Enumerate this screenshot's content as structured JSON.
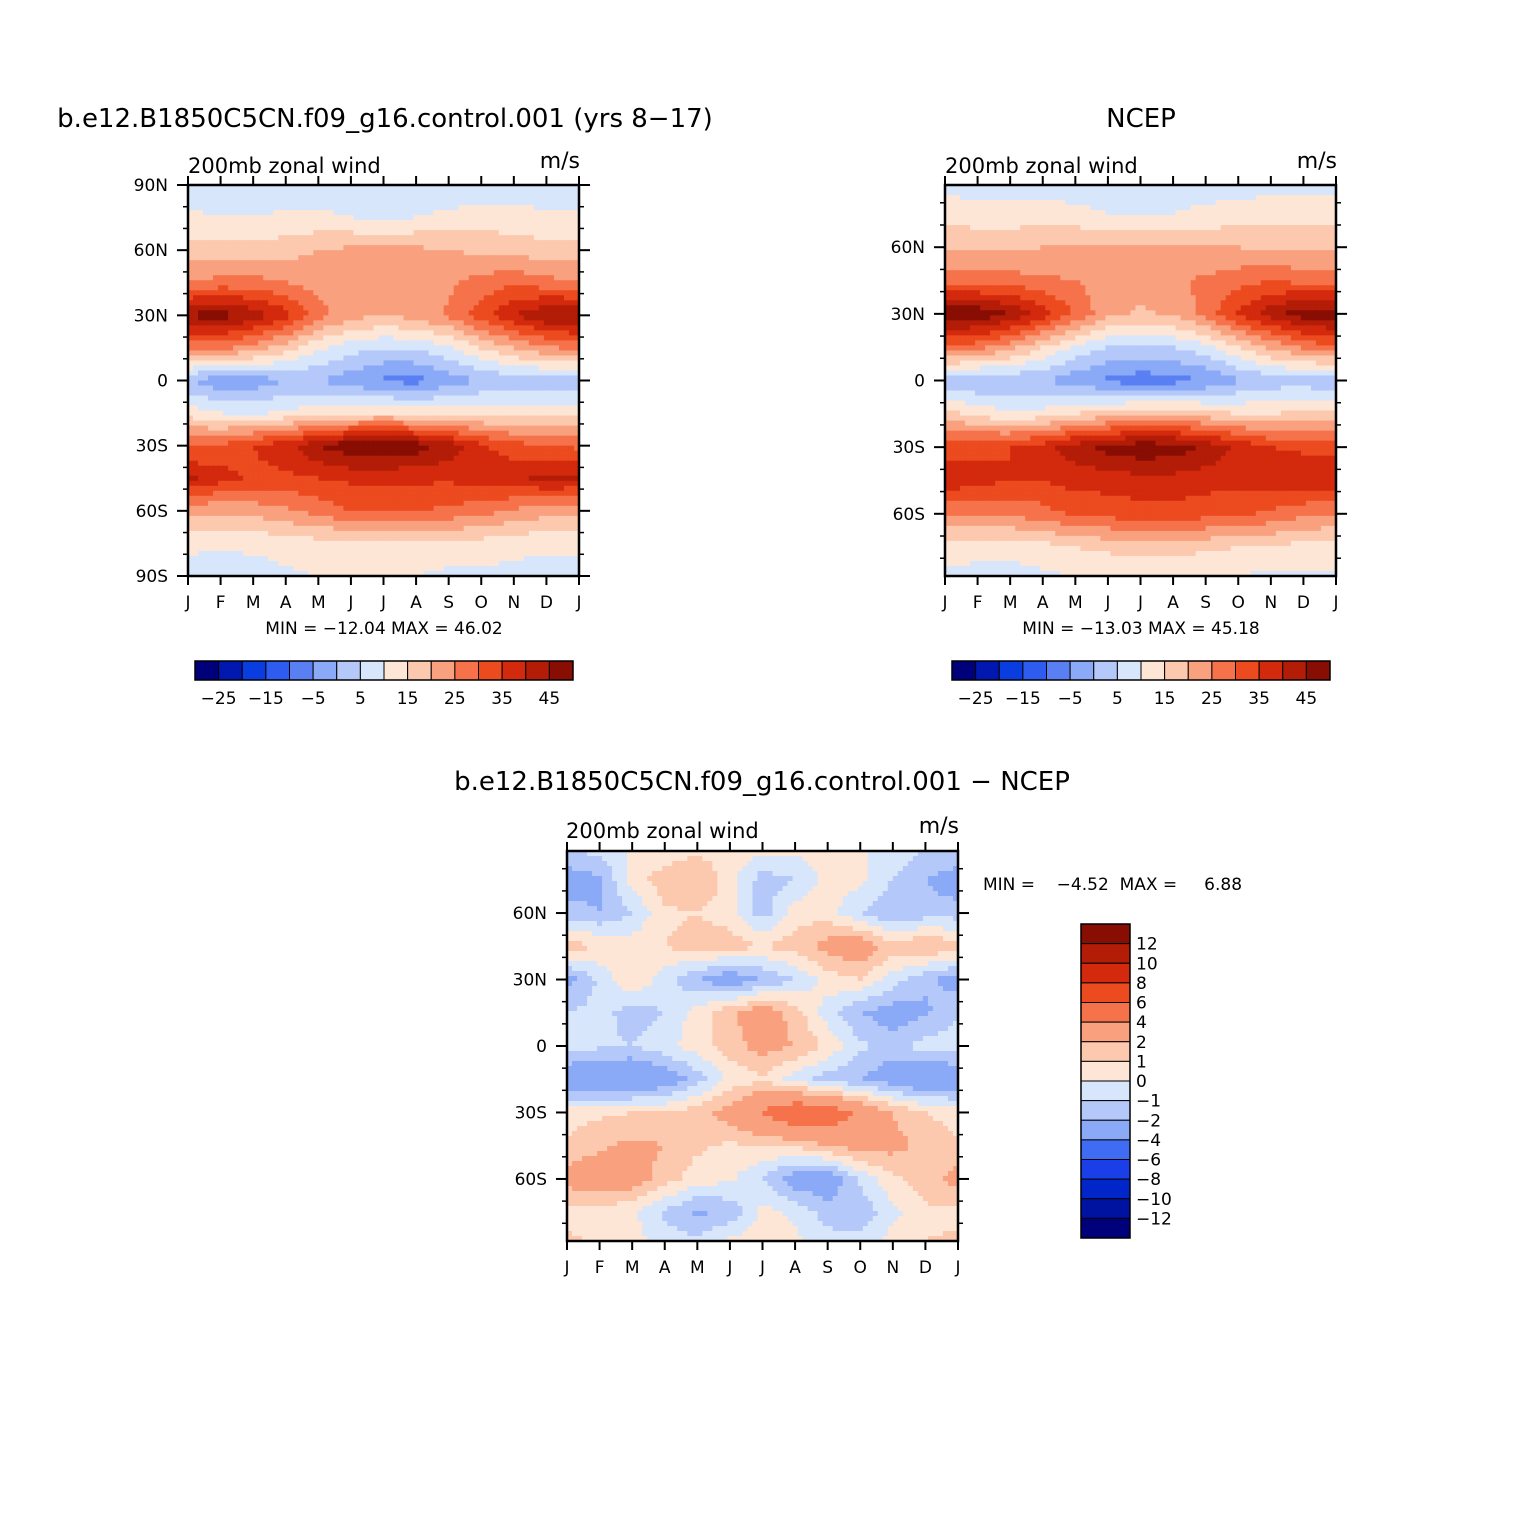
{
  "colors": {
    "absolute_palette": [
      "#00007a",
      "#0018b0",
      "#0a3de0",
      "#2e5cf0",
      "#5a7ff3",
      "#8aaaf7",
      "#b4c8f9",
      "#d8e6fb",
      "#fde6d6",
      "#fcc8ae",
      "#f9a17e",
      "#f5724a",
      "#ec4b1f",
      "#d3290c",
      "#b31c07",
      "#880d02"
    ],
    "diff_palette": [
      "#00007a",
      "#0012a0",
      "#0025c8",
      "#1a3fe8",
      "#3f6cf3",
      "#8aaaf7",
      "#b4c8f9",
      "#d8e6fb",
      "#fde6d6",
      "#fcc8ae",
      "#f9a17e",
      "#f5724a",
      "#ec4b1f",
      "#d3290c",
      "#b31c07",
      "#880d02"
    ]
  },
  "panels": [
    {
      "id": "model",
      "title": "b.e12.B1850C5CN.f09_g16.control.001 (yrs 8−17)",
      "left_string": "200mb  zonal  wind",
      "right_string": "m/s",
      "min_max": "MIN = −12.04 MAX =   46.02"
    },
    {
      "id": "obs",
      "title": "NCEP",
      "left_string": "200mb  zonal  wind",
      "right_string": "m/s",
      "min_max": "MIN = −13.03 MAX =   45.18"
    },
    {
      "id": "diff",
      "title": "b.e12.B1850C5CN.f09_g16.control.001  −  NCEP",
      "left_string": "200mb  zonal  wind",
      "right_string": "m/s",
      "min_max": "MIN =    −4.52  MAX =     6.88"
    }
  ],
  "horizontal_colorbar_labels": [
    "−25",
    "−15",
    "−5",
    "5",
    "15",
    "25",
    "35",
    "45"
  ],
  "vertical_colorbar_labels": [
    "12",
    "10",
    "8",
    "6",
    "4",
    "2",
    "1",
    "0",
    "−1",
    "−2",
    "−4",
    "−6",
    "−8",
    "−10",
    "−12"
  ],
  "chart_data": [
    {
      "type": "heatmap",
      "title": "b.e12.B1850C5CN.f09_g16.control.001 (yrs 8−17)",
      "subtitle_left": "200mb  zonal  wind",
      "subtitle_right": "m/s",
      "x_ticks": [
        "J",
        "F",
        "M",
        "A",
        "M",
        "J",
        "J",
        "A",
        "S",
        "O",
        "N",
        "D",
        "J"
      ],
      "y_ticks": [
        "90N",
        "60N",
        "30N",
        "0",
        "30S",
        "60S",
        "90S"
      ],
      "y_tick_values": [
        90,
        60,
        30,
        0,
        -30,
        -60,
        -90
      ],
      "xlim": [
        0,
        12
      ],
      "ylim": [
        -90,
        90
      ],
      "contour_levels": [
        -30,
        -25,
        -20,
        -15,
        -10,
        -5,
        0,
        5,
        10,
        15,
        20,
        25,
        30,
        35,
        40,
        45
      ],
      "min": -12.04,
      "max": 46.02,
      "lat": [
        -90,
        -75,
        -60,
        -45,
        -30,
        -15,
        0,
        15,
        30,
        45,
        60,
        75,
        90
      ],
      "month": [
        0,
        1,
        2,
        3,
        4,
        5,
        6,
        7,
        8,
        9,
        10,
        11,
        12
      ],
      "values": [
        [
          3,
          2,
          3,
          4,
          5,
          5,
          6,
          5,
          4,
          4,
          3,
          3,
          3
        ],
        [
          6,
          6,
          6,
          7,
          8,
          8,
          9,
          8,
          8,
          8,
          7,
          6,
          6
        ],
        [
          16,
          16,
          17,
          19,
          22,
          25,
          26,
          25,
          24,
          22,
          19,
          17,
          16
        ],
        [
          36,
          32,
          29,
          29,
          30,
          31,
          31,
          31,
          31,
          32,
          34,
          36,
          36
        ],
        [
          24,
          26,
          30,
          33,
          40,
          44,
          45,
          43,
          38,
          31,
          27,
          25,
          24
        ],
        [
          8,
          5,
          4,
          6,
          8,
          9,
          10,
          9,
          8,
          8,
          8,
          8,
          8
        ],
        [
          -5,
          -9,
          -8,
          -5,
          -5,
          -8,
          -11,
          -12,
          -8,
          -5,
          -3,
          -3,
          -5
        ],
        [
          22,
          21,
          18,
          12,
          6,
          2,
          0,
          1,
          4,
          10,
          15,
          19,
          22
        ],
        [
          41,
          43,
          38,
          32,
          22,
          17,
          15,
          17,
          21,
          28,
          35,
          40,
          41
        ],
        [
          20,
          22,
          22,
          20,
          18,
          16,
          16,
          17,
          19,
          22,
          24,
          22,
          20
        ],
        [
          12,
          12,
          12,
          13,
          15,
          16,
          16,
          16,
          15,
          14,
          13,
          12,
          12
        ],
        [
          6,
          5,
          5,
          6,
          6,
          5,
          4,
          5,
          6,
          7,
          7,
          6,
          6
        ],
        [
          2,
          2,
          2,
          2,
          2,
          2,
          2,
          2,
          2,
          2,
          2,
          2,
          2
        ]
      ]
    },
    {
      "type": "heatmap",
      "title": "NCEP",
      "subtitle_left": "200mb  zonal  wind",
      "subtitle_right": "m/s",
      "x_ticks": [
        "J",
        "F",
        "M",
        "A",
        "M",
        "J",
        "J",
        "A",
        "S",
        "O",
        "N",
        "D",
        "J"
      ],
      "y_ticks": [
        "60N",
        "30N",
        "0",
        "30S",
        "60S"
      ],
      "y_tick_values": [
        60,
        30,
        0,
        -30,
        -60
      ],
      "xlim": [
        0,
        12
      ],
      "ylim": [
        -88,
        88
      ],
      "contour_levels": [
        -30,
        -25,
        -20,
        -15,
        -10,
        -5,
        0,
        5,
        10,
        15,
        20,
        25,
        30,
        35,
        40,
        45
      ],
      "min": -13.03,
      "max": 45.18,
      "lat": [
        -88,
        -75,
        -60,
        -45,
        -30,
        -15,
        0,
        15,
        30,
        45,
        60,
        75,
        88
      ],
      "month": [
        0,
        1,
        2,
        3,
        4,
        5,
        6,
        7,
        8,
        9,
        10,
        11,
        12
      ],
      "values": [
        [
          4,
          3,
          3,
          4,
          5,
          6,
          6,
          6,
          5,
          5,
          4,
          4,
          4
        ],
        [
          8,
          7,
          7,
          8,
          10,
          11,
          12,
          12,
          11,
          10,
          9,
          8,
          8
        ],
        [
          20,
          20,
          21,
          23,
          26,
          27,
          28,
          28,
          27,
          26,
          24,
          21,
          20
        ],
        [
          34,
          32,
          30,
          30,
          32,
          32,
          33,
          33,
          32,
          32,
          33,
          34,
          34
        ],
        [
          28,
          29,
          30,
          33,
          38,
          42,
          44,
          43,
          39,
          34,
          30,
          29,
          28
        ],
        [
          12,
          8,
          6,
          7,
          10,
          12,
          14,
          14,
          12,
          10,
          10,
          11,
          12
        ],
        [
          -4,
          -5,
          -4,
          -5,
          -8,
          -11,
          -13,
          -12,
          -10,
          -6,
          -3,
          -3,
          -4
        ],
        [
          24,
          22,
          17,
          10,
          4,
          0,
          -1,
          0,
          3,
          10,
          16,
          21,
          24
        ],
        [
          44,
          44,
          40,
          33,
          24,
          17,
          14,
          16,
          22,
          31,
          38,
          43,
          44
        ],
        [
          22,
          22,
          22,
          21,
          20,
          18,
          18,
          19,
          21,
          23,
          25,
          23,
          22
        ],
        [
          14,
          14,
          14,
          15,
          16,
          16,
          16,
          16,
          15,
          15,
          14,
          14,
          14
        ],
        [
          8,
          7,
          7,
          7,
          6,
          5,
          5,
          5,
          6,
          7,
          8,
          8,
          8
        ],
        [
          3,
          3,
          3,
          3,
          3,
          3,
          3,
          3,
          3,
          3,
          3,
          3,
          3
        ]
      ]
    },
    {
      "type": "heatmap",
      "title": "b.e12.B1850C5CN.f09_g16.control.001  −  NCEP",
      "subtitle_left": "200mb  zonal  wind",
      "subtitle_right": "m/s",
      "x_ticks": [
        "J",
        "F",
        "M",
        "A",
        "M",
        "J",
        "J",
        "A",
        "S",
        "O",
        "N",
        "D",
        "J"
      ],
      "y_ticks": [
        "60N",
        "30N",
        "0",
        "30S",
        "60S"
      ],
      "y_tick_values": [
        60,
        30,
        0,
        -30,
        -60
      ],
      "xlim": [
        0,
        12
      ],
      "ylim": [
        -88,
        88
      ],
      "contour_levels": [
        -12,
        -10,
        -8,
        -6,
        -4,
        -2,
        -1,
        0,
        1,
        2,
        4,
        6,
        8,
        10,
        12
      ],
      "min": -4.52,
      "max": 6.88,
      "lat": [
        -88,
        -75,
        -60,
        -45,
        -30,
        -15,
        0,
        15,
        30,
        45,
        60,
        75,
        88
      ],
      "month": [
        0,
        1,
        2,
        3,
        4,
        5,
        6,
        7,
        8,
        9,
        10,
        11,
        12
      ],
      "values": [
        [
          1.2,
          0.8,
          0.5,
          -0.5,
          -0.8,
          0.3,
          0.5,
          0.2,
          -0.6,
          -0.5,
          0.4,
          1.0,
          1.2
        ],
        [
          0.6,
          0.5,
          0.2,
          -1.2,
          -2.2,
          -1.8,
          0.3,
          -0.2,
          -1.5,
          -1.8,
          -0.3,
          0.8,
          0.6
        ],
        [
          2.5,
          3.0,
          2.8,
          1.5,
          0.5,
          0.2,
          -1.0,
          -2.8,
          -3.0,
          -0.8,
          0.8,
          1.5,
          2.5
        ],
        [
          1.2,
          1.8,
          2.3,
          2.0,
          1.2,
          0.8,
          1.0,
          1.2,
          2.0,
          2.6,
          2.4,
          1.7,
          1.2
        ],
        [
          0.5,
          0.8,
          1.0,
          1.0,
          1.6,
          2.6,
          4.2,
          5.8,
          5.5,
          3.5,
          2.0,
          1.0,
          0.5
        ],
        [
          -3.2,
          -3.5,
          -3.8,
          -3.0,
          -1.5,
          0.3,
          0.8,
          -0.5,
          -1.5,
          -2.0,
          -2.8,
          -3.5,
          -3.2
        ],
        [
          -0.6,
          -0.8,
          -1.0,
          -0.3,
          0.5,
          1.5,
          2.5,
          2.0,
          0.8,
          -0.8,
          -1.5,
          -0.5,
          -0.6
        ],
        [
          -1.0,
          -0.6,
          -1.5,
          -1.0,
          0.5,
          1.8,
          3.0,
          1.5,
          -0.5,
          -2.0,
          -2.6,
          -2.2,
          -1.0
        ],
        [
          -2.5,
          -0.8,
          1.0,
          -0.5,
          -2.0,
          -3.0,
          -2.0,
          -1.0,
          0.5,
          1.0,
          -0.5,
          -1.8,
          -2.5
        ],
        [
          1.5,
          1.0,
          0.5,
          1.0,
          1.5,
          1.5,
          1.0,
          1.5,
          2.5,
          3.0,
          1.5,
          2.0,
          1.5
        ],
        [
          -1.5,
          -2.0,
          -1.0,
          0.8,
          1.0,
          0.5,
          -1.5,
          0.5,
          0.5,
          -1.0,
          -2.0,
          -1.5,
          -1.5
        ],
        [
          -2.8,
          -2.2,
          0.5,
          1.5,
          2.0,
          0.5,
          -1.5,
          -1.0,
          0.5,
          0.3,
          -1.0,
          -2.0,
          -2.8
        ],
        [
          -1.0,
          -0.8,
          0.2,
          0.5,
          0.8,
          0.5,
          0.2,
          0.2,
          0.3,
          0.2,
          -0.5,
          -1.0,
          -1.0
        ]
      ]
    }
  ]
}
